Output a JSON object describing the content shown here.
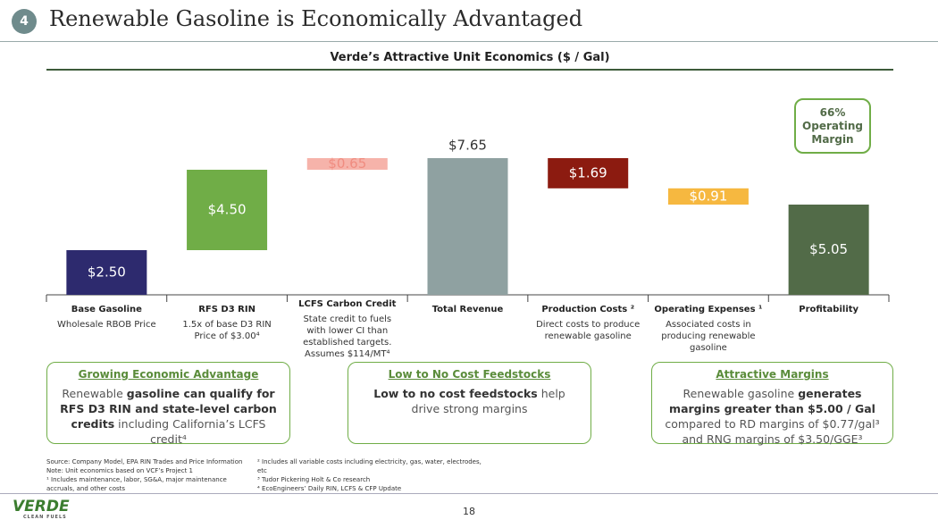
{
  "slide_number": "4",
  "title": "Renewable Gasoline is Economically Advantaged",
  "chart_data": {
    "type": "waterfall",
    "title": "Verde’s Attractive Unit Economics ($ / Gal)",
    "categories": [
      "Base Gasoline",
      "RFS D3 RIN",
      "LCFS Carbon Credit",
      "Total Revenue",
      "Production Costs ²",
      "Operating Expenses ¹",
      "Profitability"
    ],
    "descriptions": [
      "Wholesale RBOB Price",
      "1.5x of base D3 RIN Price of $3.00⁴",
      "State credit to fuels with lower CI than established targets. Assumes $114/MT⁴",
      null,
      "Direct costs to produce renewable gasoline",
      "Associated costs in producing renewable gasoline",
      null
    ],
    "values": [
      2.5,
      4.5,
      0.65,
      7.65,
      1.69,
      0.91,
      5.05
    ],
    "value_labels": [
      "$2.50",
      "$4.50",
      "$0.65",
      "$7.65",
      "$1.69",
      "$0.91",
      "$5.05"
    ],
    "measures": [
      "absolute",
      "increase",
      "increase",
      "total",
      "decrease",
      "decrease",
      "total"
    ],
    "colors": [
      "#2d2a6e",
      "#70ad47",
      "#f6b3aa",
      "#8fa1a1",
      "#8c1b10",
      "#f6b840",
      "#526b48"
    ],
    "label_colors": [
      "#ffffff",
      "#ffffff",
      "#f08c80",
      "#333333",
      "#ffffff",
      "#ffffff",
      "#ffffff"
    ],
    "annotation": "66% Operating Margin"
  },
  "callouts": [
    {
      "heading": "Growing Economic Advantage",
      "body": [
        {
          "text": "Renewable "
        },
        {
          "text": "gasoline can qualify for RFS D3 RIN and state-level carbon credits",
          "bold": true
        },
        {
          "text": " including California’s LCFS credit⁴"
        }
      ]
    },
    {
      "heading": "Low to No Cost Feedstocks",
      "body": [
        {
          "text": "Low to no cost feedstocks",
          "bold": true
        },
        {
          "text": " help drive strong margins"
        }
      ]
    },
    {
      "heading": "Attractive Margins",
      "body": [
        {
          "text": "Renewable gasoline "
        },
        {
          "text": "generates margins greater than $5.00 / Gal",
          "bold": true
        },
        {
          "text": "  compared to RD margins of $0.77/gal³ and RNG margins of $3.50/GGE³"
        }
      ]
    }
  ],
  "footnotes_left": [
    "Source: Company Model, EPA RIN Trades and Price Information",
    "Note: Unit economics based on VCF’s Project 1",
    "¹ Includes maintenance, labor, SG&A, major maintenance accruals, and other costs"
  ],
  "footnotes_right": [
    "² Includes all variable costs including electricity, gas, water, electrodes, etc",
    "³ Tudor Pickering Holt & Co research",
    "⁴ EcoEngineers’ Daily RIN, LCFS & CFP Update"
  ],
  "page_number": "18",
  "logo": "VERDE",
  "logo_tagline": "CLEAN FUELS"
}
